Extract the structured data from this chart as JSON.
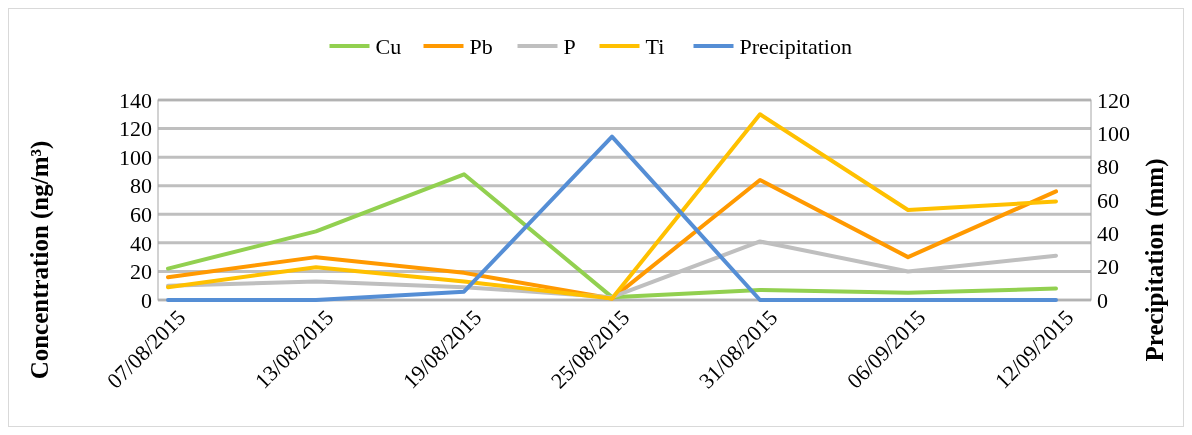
{
  "chart_data": {
    "type": "line",
    "categories": [
      "07/08/2015",
      "13/08/2015",
      "19/08/2015",
      "25/08/2015",
      "31/08/2015",
      "06/09/2015",
      "12/09/2015"
    ],
    "ylabel": "Concentration (ng/m³)",
    "y2label": "Precipitation (mm)",
    "ylim": [
      0,
      140
    ],
    "yticks": [
      0,
      20,
      40,
      60,
      80,
      100,
      120,
      140
    ],
    "y2lim": [
      0,
      120
    ],
    "y2ticks": [
      0,
      20,
      40,
      60,
      80,
      100,
      120
    ],
    "grid": "y",
    "legend": "top",
    "marker": "none",
    "line_style": "solid",
    "series": [
      {
        "name": "Cu",
        "color": "#92d050",
        "values": [
          22,
          48,
          88,
          2,
          7,
          5,
          8
        ]
      },
      {
        "name": "Pb",
        "color": "#ff9900",
        "values": [
          16,
          30,
          19,
          1,
          84,
          30,
          76
        ]
      },
      {
        "name": "P",
        "color": "#bfbfbf",
        "values": [
          10,
          13,
          9,
          2,
          41,
          20,
          31
        ]
      },
      {
        "name": "Ti",
        "color": "#ffc000",
        "values": [
          9,
          23,
          13,
          1,
          130,
          63,
          69
        ]
      },
      {
        "name": "Precipitation",
        "color": "#558ed5",
        "values": [
          0,
          0,
          5,
          98,
          0,
          0,
          0
        ],
        "axis": "y2"
      }
    ]
  }
}
